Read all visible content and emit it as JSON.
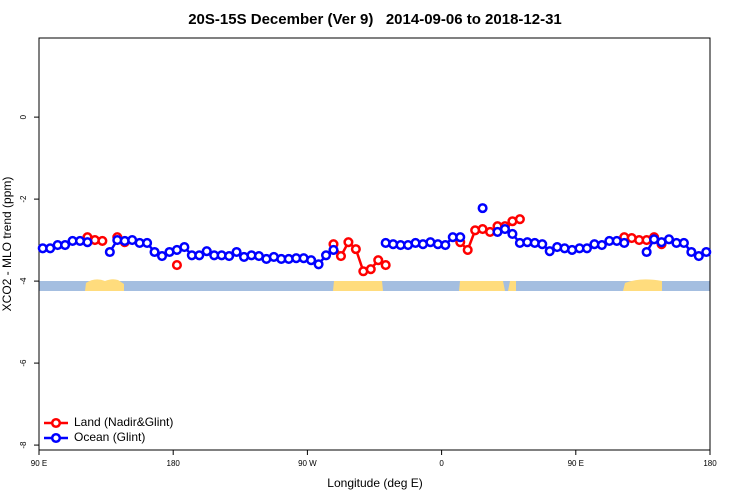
{
  "chart_data": {
    "type": "line",
    "title": "20S-15S December (Ver 9)   2014-09-06 to 2018-12-31",
    "x_label": "Longitude (deg E)",
    "y_label": "XCO2 - MLO trend (ppm)",
    "xlim": [
      90,
      540
    ],
    "ylim": [
      -8.12,
      1.93
    ],
    "xticks": [
      {
        "value": 90,
        "label": "90 E"
      },
      180,
      {
        "value": 270,
        "label": "90 W"
      },
      {
        "value": 360,
        "label": "0"
      },
      {
        "value": 450,
        "label": "90 E"
      },
      {
        "value": 540,
        "label": "180"
      }
    ],
    "yticks": [
      0,
      -2,
      -4,
      -6,
      -8
    ],
    "legend": "bottom-left",
    "x": [
      92.5,
      97.5,
      102.5,
      107.5,
      112.5,
      117.5,
      122.5,
      127.5,
      132.5,
      137.5,
      142.5,
      147.5,
      152.5,
      157.5,
      162.5,
      167.5,
      172.5,
      177.5,
      182.5,
      187.5,
      192.5,
      197.5,
      202.5,
      207.5,
      212.5,
      217.5,
      222.5,
      227.5,
      232.5,
      237.5,
      242.5,
      247.5,
      252.5,
      257.5,
      262.5,
      267.5,
      272.5,
      277.5,
      282.5,
      287.5,
      292.5,
      297.5,
      302.5,
      307.5,
      312.5,
      317.5,
      322.5,
      327.5,
      332.5,
      337.5,
      342.5,
      347.5,
      352.5,
      357.5,
      362.5,
      367.5,
      372.5,
      377.5,
      382.5,
      387.5,
      392.5,
      397.5,
      402.5,
      407.5,
      412.5,
      417.5,
      422.5,
      427.5,
      432.5,
      437.5,
      442.5,
      447.5,
      452.5,
      457.5,
      462.5,
      467.5,
      472.5,
      477.5,
      482.5,
      487.5,
      492.5,
      497.5,
      502.5,
      507.5,
      512.5,
      517.5,
      522.5,
      527.5,
      532.5,
      537.5
    ],
    "series": [
      {
        "name": "Land (Nadir&Glint)",
        "color": "#ff0000",
        "values": [
          null,
          null,
          null,
          null,
          null,
          null,
          -2.93,
          -3.0,
          -3.02,
          null,
          -2.93,
          -3.05,
          null,
          null,
          null,
          null,
          null,
          null,
          -3.61,
          null,
          null,
          null,
          null,
          null,
          null,
          null,
          null,
          null,
          null,
          null,
          null,
          null,
          null,
          null,
          null,
          null,
          null,
          null,
          null,
          -3.1,
          -3.39,
          -3.05,
          -3.22,
          -3.76,
          -3.71,
          -3.49,
          -3.61,
          null,
          null,
          null,
          null,
          null,
          null,
          null,
          null,
          null,
          -3.05,
          -3.24,
          -2.76,
          -2.73,
          -2.8,
          -2.66,
          -2.66,
          -2.54,
          -2.49,
          null,
          null,
          null,
          null,
          null,
          null,
          null,
          null,
          null,
          null,
          null,
          null,
          null,
          -2.93,
          -2.95,
          -3.0,
          -3.0,
          -2.93,
          -3.1,
          null,
          null,
          null,
          null,
          null,
          null
        ]
      },
      {
        "name": "Ocean (Glint)",
        "color": "#0000ff",
        "values": [
          -3.2,
          -3.2,
          -3.12,
          -3.12,
          -3.02,
          -3.02,
          -3.05,
          null,
          null,
          -3.29,
          -3.0,
          -3.02,
          -3.0,
          -3.07,
          -3.07,
          -3.29,
          -3.39,
          -3.29,
          -3.24,
          -3.17,
          -3.37,
          -3.37,
          -3.27,
          -3.37,
          -3.37,
          -3.39,
          -3.29,
          -3.41,
          -3.37,
          -3.39,
          -3.46,
          -3.41,
          -3.46,
          -3.46,
          -3.44,
          -3.44,
          -3.49,
          -3.59,
          -3.37,
          -3.24,
          null,
          null,
          null,
          null,
          null,
          null,
          -3.07,
          -3.1,
          -3.12,
          -3.12,
          -3.07,
          -3.1,
          -3.05,
          -3.1,
          -3.12,
          -2.93,
          -2.93,
          null,
          null,
          -2.22,
          null,
          -2.8,
          -2.73,
          -2.85,
          -3.07,
          -3.05,
          -3.07,
          -3.1,
          -3.27,
          -3.17,
          -3.2,
          -3.24,
          -3.2,
          -3.2,
          -3.1,
          -3.12,
          -3.02,
          -3.02,
          -3.07,
          null,
          null,
          -3.29,
          -2.98,
          -3.05,
          -2.98,
          -3.07,
          -3.07,
          -3.29,
          -3.39,
          -3.29
        ]
      }
    ]
  }
}
